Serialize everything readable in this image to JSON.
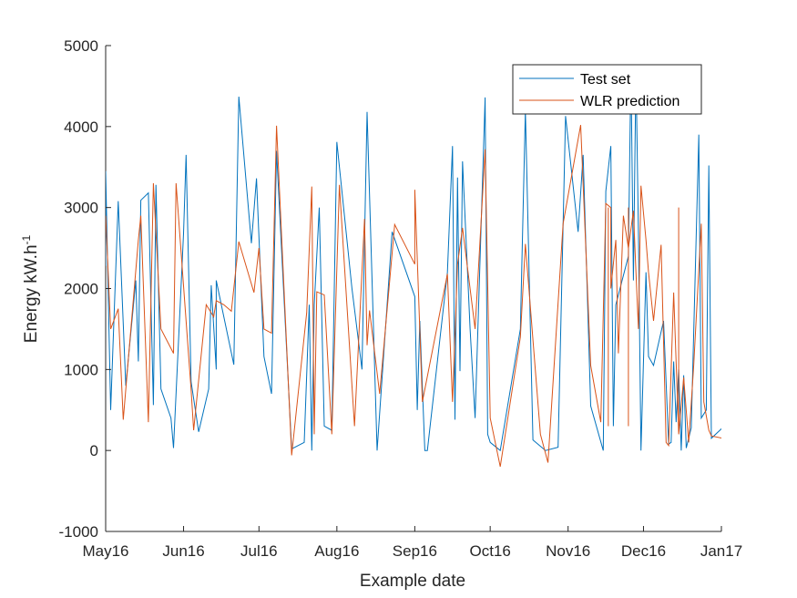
{
  "chart_data": {
    "type": "line",
    "title": "",
    "xlabel": "Example date",
    "ylabel": "Energy kW.h",
    "ylabel_superscript": "-1",
    "xlim": [
      "2016-05-01",
      "2017-01-01"
    ],
    "ylim": [
      -1000,
      5000
    ],
    "x_ticks": [
      {
        "date": "2016-05-01",
        "label": "May16"
      },
      {
        "date": "2016-06-01",
        "label": "Jun16"
      },
      {
        "date": "2016-07-01",
        "label": "Jul16"
      },
      {
        "date": "2016-08-01",
        "label": "Aug16"
      },
      {
        "date": "2016-09-01",
        "label": "Sep16"
      },
      {
        "date": "2016-10-01",
        "label": "Oct16"
      },
      {
        "date": "2016-11-01",
        "label": "Nov16"
      },
      {
        "date": "2016-12-01",
        "label": "Dec16"
      },
      {
        "date": "2017-01-01",
        "label": "Jan17"
      }
    ],
    "y_ticks": [
      {
        "value": -1000,
        "label": "-1000"
      },
      {
        "value": 0,
        "label": "0"
      },
      {
        "value": 1000,
        "label": "1000"
      },
      {
        "value": 2000,
        "label": "2000"
      },
      {
        "value": 3000,
        "label": "3000"
      },
      {
        "value": 4000,
        "label": "4000"
      },
      {
        "value": 5000,
        "label": "5000"
      }
    ],
    "grid": false,
    "legend_position": "top-right",
    "series": [
      {
        "name": "Test set",
        "color": "#0072BD",
        "points": [
          [
            "2016-05-01",
            2280
          ],
          [
            "2016-05-01",
            3450
          ],
          [
            "2016-05-03",
            500
          ],
          [
            "2016-05-06",
            3080
          ],
          [
            "2016-05-09",
            800
          ],
          [
            "2016-05-13",
            2100
          ],
          [
            "2016-05-14",
            1100
          ],
          [
            "2016-05-15",
            3090
          ],
          [
            "2016-05-18",
            3180
          ],
          [
            "2016-05-20",
            560
          ],
          [
            "2016-05-21",
            3280
          ],
          [
            "2016-05-23",
            760
          ],
          [
            "2016-05-27",
            400
          ],
          [
            "2016-05-28",
            30
          ],
          [
            "2016-06-01",
            2680
          ],
          [
            "2016-06-02",
            3650
          ],
          [
            "2016-06-04",
            850
          ],
          [
            "2016-06-07",
            230
          ],
          [
            "2016-06-11",
            760
          ],
          [
            "2016-06-12",
            2040
          ],
          [
            "2016-06-14",
            1000
          ],
          [
            "2016-06-14",
            2100
          ],
          [
            "2016-06-21",
            1060
          ],
          [
            "2016-06-23",
            4370
          ],
          [
            "2016-06-28",
            2560
          ],
          [
            "2016-06-30",
            3360
          ],
          [
            "2016-07-03",
            1160
          ],
          [
            "2016-07-06",
            700
          ],
          [
            "2016-07-08",
            3700
          ],
          [
            "2016-07-14",
            20
          ],
          [
            "2016-07-19",
            100
          ],
          [
            "2016-07-21",
            1800
          ],
          [
            "2016-07-22",
            0
          ],
          [
            "2016-07-23",
            1800
          ],
          [
            "2016-07-25",
            3000
          ],
          [
            "2016-07-27",
            300
          ],
          [
            "2016-07-30",
            250
          ],
          [
            "2016-08-01",
            3810
          ],
          [
            "2016-08-07",
            2000
          ],
          [
            "2016-08-11",
            1000
          ],
          [
            "2016-08-13",
            4180
          ],
          [
            "2016-08-17",
            0
          ],
          [
            "2016-08-23",
            2700
          ],
          [
            "2016-09-01",
            1900
          ],
          [
            "2016-09-02",
            500
          ],
          [
            "2016-09-03",
            1600
          ],
          [
            "2016-09-05",
            0
          ],
          [
            "2016-09-06",
            0
          ],
          [
            "2016-09-14",
            2200
          ],
          [
            "2016-09-16",
            3760
          ],
          [
            "2016-09-17",
            380
          ],
          [
            "2016-09-18",
            3370
          ],
          [
            "2016-09-19",
            980
          ],
          [
            "2016-09-20",
            3570
          ],
          [
            "2016-09-23",
            1500
          ],
          [
            "2016-09-25",
            400
          ],
          [
            "2016-09-29",
            4360
          ],
          [
            "2016-09-30",
            200
          ],
          [
            "2016-10-01",
            100
          ],
          [
            "2016-10-05",
            0
          ],
          [
            "2016-10-13",
            1500
          ],
          [
            "2016-10-15",
            4200
          ],
          [
            "2016-10-18",
            130
          ],
          [
            "2016-10-23",
            0
          ],
          [
            "2016-10-28",
            40
          ],
          [
            "2016-10-31",
            4130
          ],
          [
            "2016-11-05",
            2700
          ],
          [
            "2016-11-07",
            3650
          ],
          [
            "2016-11-10",
            550
          ],
          [
            "2016-11-15",
            0
          ],
          [
            "2016-11-16",
            3200
          ],
          [
            "2016-11-18",
            3760
          ],
          [
            "2016-11-19",
            300
          ],
          [
            "2016-11-20",
            1800
          ],
          [
            "2016-11-25",
            2400
          ],
          [
            "2016-11-26",
            4750
          ],
          [
            "2016-11-27",
            2100
          ],
          [
            "2016-11-28",
            4700
          ],
          [
            "2016-11-29",
            2700
          ],
          [
            "2016-11-30",
            0
          ],
          [
            "2016-12-02",
            2200
          ],
          [
            "2016-12-03",
            1160
          ],
          [
            "2016-12-05",
            1050
          ],
          [
            "2016-12-09",
            1600
          ],
          [
            "2016-12-11",
            80
          ],
          [
            "2016-12-12",
            100
          ],
          [
            "2016-12-13",
            1100
          ],
          [
            "2016-12-14",
            350
          ],
          [
            "2016-12-15",
            1000
          ],
          [
            "2016-12-16",
            0
          ],
          [
            "2016-12-17",
            930
          ],
          [
            "2016-12-18",
            30
          ],
          [
            "2016-12-20",
            280
          ],
          [
            "2016-12-23",
            3900
          ],
          [
            "2016-12-24",
            400
          ],
          [
            "2016-12-26",
            500
          ],
          [
            "2016-12-27",
            3520
          ],
          [
            "2016-12-28",
            150
          ],
          [
            "2017-01-08",
            470
          ]
        ]
      },
      {
        "name": "WLR prediction",
        "color": "#D95319",
        "points": [
          [
            "2016-05-01",
            2900
          ],
          [
            "2016-05-03",
            1500
          ],
          [
            "2016-05-06",
            1750
          ],
          [
            "2016-05-08",
            380
          ],
          [
            "2016-05-14",
            2600
          ],
          [
            "2016-05-15",
            2900
          ],
          [
            "2016-05-18",
            350
          ],
          [
            "2016-05-20",
            3300
          ],
          [
            "2016-05-23",
            1500
          ],
          [
            "2016-05-28",
            1200
          ],
          [
            "2016-05-29",
            3300
          ],
          [
            "2016-06-04",
            750
          ],
          [
            "2016-06-05",
            250
          ],
          [
            "2016-06-10",
            1800
          ],
          [
            "2016-06-13",
            1650
          ],
          [
            "2016-06-14",
            1850
          ],
          [
            "2016-06-17",
            1800
          ],
          [
            "2016-06-20",
            1720
          ],
          [
            "2016-06-23",
            2580
          ],
          [
            "2016-06-29",
            1950
          ],
          [
            "2016-07-01",
            2500
          ],
          [
            "2016-07-03",
            1500
          ],
          [
            "2016-07-06",
            1450
          ],
          [
            "2016-07-08",
            4010
          ],
          [
            "2016-07-14",
            -60
          ],
          [
            "2016-07-20",
            1700
          ],
          [
            "2016-07-22",
            3260
          ],
          [
            "2016-07-23",
            200
          ],
          [
            "2016-07-24",
            1960
          ],
          [
            "2016-07-27",
            1920
          ],
          [
            "2016-07-30",
            200
          ],
          [
            "2016-08-02",
            3280
          ],
          [
            "2016-08-08",
            300
          ],
          [
            "2016-08-12",
            2860
          ],
          [
            "2016-08-13",
            1300
          ],
          [
            "2016-08-14",
            1730
          ],
          [
            "2016-08-18",
            700
          ],
          [
            "2016-08-24",
            2790
          ],
          [
            "2016-09-01",
            2300
          ],
          [
            "2016-09-01",
            3220
          ],
          [
            "2016-09-04",
            600
          ],
          [
            "2016-09-14",
            2180
          ],
          [
            "2016-09-16",
            600
          ],
          [
            "2016-09-18",
            2300
          ],
          [
            "2016-09-20",
            2750
          ],
          [
            "2016-09-25",
            1500
          ],
          [
            "2016-09-29",
            3720
          ],
          [
            "2016-10-01",
            400
          ],
          [
            "2016-10-05",
            -200
          ],
          [
            "2016-10-13",
            1400
          ],
          [
            "2016-10-15",
            2550
          ],
          [
            "2016-10-21",
            200
          ],
          [
            "2016-10-24",
            -150
          ],
          [
            "2016-10-30",
            2800
          ],
          [
            "2016-11-06",
            4020
          ],
          [
            "2016-11-10",
            1050
          ],
          [
            "2016-11-14",
            350
          ],
          [
            "2016-11-16",
            3050
          ],
          [
            "2016-11-18",
            3000
          ],
          [
            "2016-11-18",
            2000
          ],
          [
            "2016-11-20",
            2600
          ],
          [
            "2016-11-21",
            1200
          ],
          [
            "2016-11-23",
            2900
          ],
          [
            "2016-11-25",
            2500
          ],
          [
            "2016-11-27",
            2960
          ],
          [
            "2016-11-28",
            2200
          ],
          [
            "2016-11-29",
            1500
          ],
          [
            "2016-11-30",
            3270
          ],
          [
            "2016-12-02",
            2600
          ],
          [
            "2016-12-03",
            2200
          ],
          [
            "2016-12-05",
            1600
          ],
          [
            "2016-12-08",
            2540
          ],
          [
            "2016-12-10",
            100
          ],
          [
            "2016-12-11",
            60
          ],
          [
            "2016-12-13",
            1950
          ],
          [
            "2016-12-15",
            200
          ],
          [
            "2016-12-17",
            900
          ],
          [
            "2016-12-19",
            100
          ],
          [
            "2016-12-21",
            1050
          ],
          [
            "2016-12-24",
            2800
          ],
          [
            "2016-12-25",
            600
          ],
          [
            "2016-12-27",
            250
          ],
          [
            "2016-12-28",
            180
          ],
          [
            "2017-01-08",
            110
          ]
        ]
      }
    ],
    "spikes": {
      "WLR prediction": [
        [
          "2016-11-17",
          300
        ],
        [
          "2016-11-25",
          300
        ],
        [
          "2016-12-15",
          300
        ]
      ]
    }
  }
}
